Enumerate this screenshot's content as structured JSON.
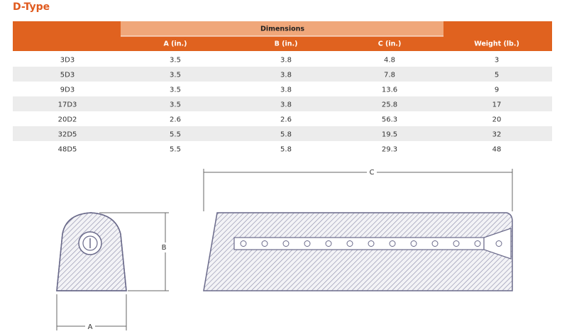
{
  "title": "D-Type",
  "table": {
    "group_header": "Dimensions",
    "columns": [
      "A (in.)",
      "B (in.)",
      "C (in.)",
      "Weight (lb.)"
    ],
    "rows": [
      [
        "3D3",
        "3.5",
        "3.8",
        "4.8",
        "3"
      ],
      [
        "5D3",
        "3.5",
        "3.8",
        "7.8",
        "5"
      ],
      [
        "9D3",
        "3.5",
        "3.8",
        "13.6",
        "9"
      ],
      [
        "17D3",
        "3.5",
        "3.8",
        "25.8",
        "17"
      ],
      [
        "20D2",
        "2.6",
        "2.6",
        "56.3",
        "20"
      ],
      [
        "32D5",
        "5.5",
        "5.8",
        "19.5",
        "32"
      ],
      [
        "48D5",
        "5.5",
        "5.8",
        "29.3",
        "48"
      ]
    ]
  },
  "diagram": {
    "a_label": "A",
    "b_label": "B",
    "c_label": "C"
  }
}
